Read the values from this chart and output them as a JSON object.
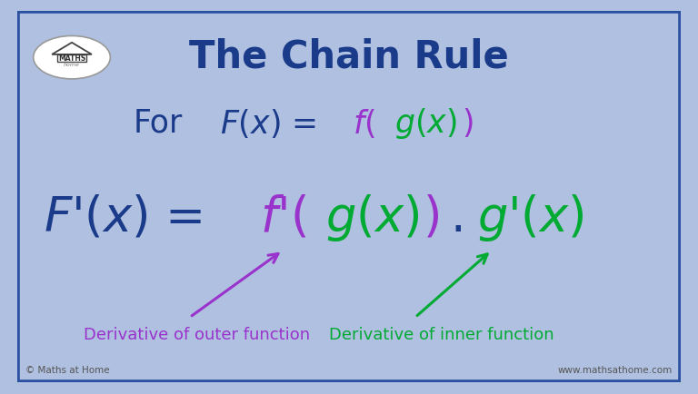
{
  "title": "The Chain Rule",
  "title_color": "#1a3a8a",
  "title_fontsize": 30,
  "bg_color": "#f0f4ff",
  "border_outer_color": "#b0c0e0",
  "border_inner_color": "#2a50a0",
  "footer_left": "© Maths at Home",
  "footer_right": "www.mathsathome.com",
  "footer_color": "#555555",
  "footer_fontsize": 7.5,
  "color_dark_blue": "#1a3a8a",
  "color_purple": "#9933cc",
  "color_green": "#00aa33",
  "arrow1_color": "#9933cc",
  "arrow2_color": "#00aa33",
  "label1_text": "Derivative of outer function",
  "label1_color": "#9933cc",
  "label2_text": "Derivative of inner function",
  "label2_color": "#00aa33"
}
